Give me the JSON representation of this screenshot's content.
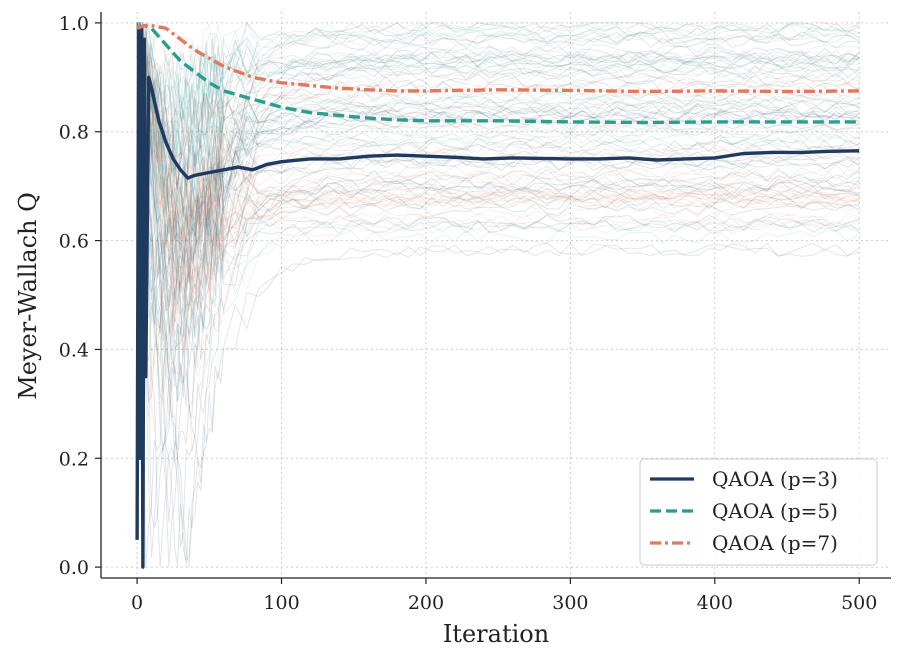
{
  "chart_data": {
    "type": "line",
    "xlabel": "Iteration",
    "ylabel": "Meyer-Wallach Q",
    "xlim": [
      -25,
      522
    ],
    "ylim": [
      -0.02,
      1.02
    ],
    "xticks": [
      0,
      100,
      200,
      300,
      400,
      500
    ],
    "yticks": [
      0.0,
      0.2,
      0.4,
      0.6,
      0.8,
      1.0
    ],
    "ytick_labels": [
      "0.0",
      "0.2",
      "0.4",
      "0.6",
      "0.8",
      "1.0"
    ],
    "grid": true,
    "legend_position": "lower-right",
    "series": [
      {
        "name": "QAOA (p=3)",
        "color": "#1f3a5f",
        "dash": "solid",
        "x": [
          0,
          1,
          2,
          3,
          4,
          5,
          6,
          8,
          10,
          15,
          20,
          25,
          30,
          35,
          40,
          50,
          60,
          70,
          80,
          90,
          100,
          120,
          140,
          160,
          180,
          200,
          220,
          240,
          260,
          280,
          300,
          320,
          340,
          360,
          380,
          400,
          420,
          440,
          460,
          480,
          500
        ],
        "y": [
          0.05,
          0.99,
          0.2,
          0.99,
          0.0,
          0.97,
          0.35,
          0.9,
          0.88,
          0.82,
          0.78,
          0.75,
          0.73,
          0.715,
          0.72,
          0.725,
          0.73,
          0.735,
          0.73,
          0.74,
          0.745,
          0.75,
          0.75,
          0.755,
          0.757,
          0.755,
          0.753,
          0.75,
          0.752,
          0.751,
          0.75,
          0.75,
          0.752,
          0.748,
          0.75,
          0.752,
          0.76,
          0.762,
          0.762,
          0.764,
          0.765
        ]
      },
      {
        "name": "QAOA (p=5)",
        "color": "#2a9d8f",
        "dash": "dashed",
        "x": [
          0,
          5,
          10,
          20,
          30,
          40,
          50,
          60,
          80,
          100,
          120,
          140,
          160,
          180,
          200,
          250,
          300,
          350,
          400,
          450,
          500
        ],
        "y": [
          0.99,
          0.995,
          0.99,
          0.96,
          0.93,
          0.91,
          0.89,
          0.875,
          0.86,
          0.845,
          0.835,
          0.83,
          0.825,
          0.822,
          0.82,
          0.82,
          0.818,
          0.817,
          0.818,
          0.818,
          0.818
        ]
      },
      {
        "name": "QAOA (p=7)",
        "color": "#e07a5f",
        "dash": "dashdot",
        "x": [
          0,
          5,
          10,
          20,
          30,
          40,
          50,
          60,
          80,
          100,
          120,
          140,
          160,
          180,
          200,
          250,
          300,
          350,
          400,
          450,
          500
        ],
        "y": [
          0.99,
          0.995,
          0.995,
          0.99,
          0.97,
          0.95,
          0.935,
          0.92,
          0.9,
          0.89,
          0.885,
          0.88,
          0.877,
          0.875,
          0.875,
          0.877,
          0.876,
          0.874,
          0.875,
          0.874,
          0.875
        ]
      }
    ],
    "background_run_colors": [
      "#1f3a5f",
      "#2a9d8f",
      "#e07a5f"
    ]
  }
}
